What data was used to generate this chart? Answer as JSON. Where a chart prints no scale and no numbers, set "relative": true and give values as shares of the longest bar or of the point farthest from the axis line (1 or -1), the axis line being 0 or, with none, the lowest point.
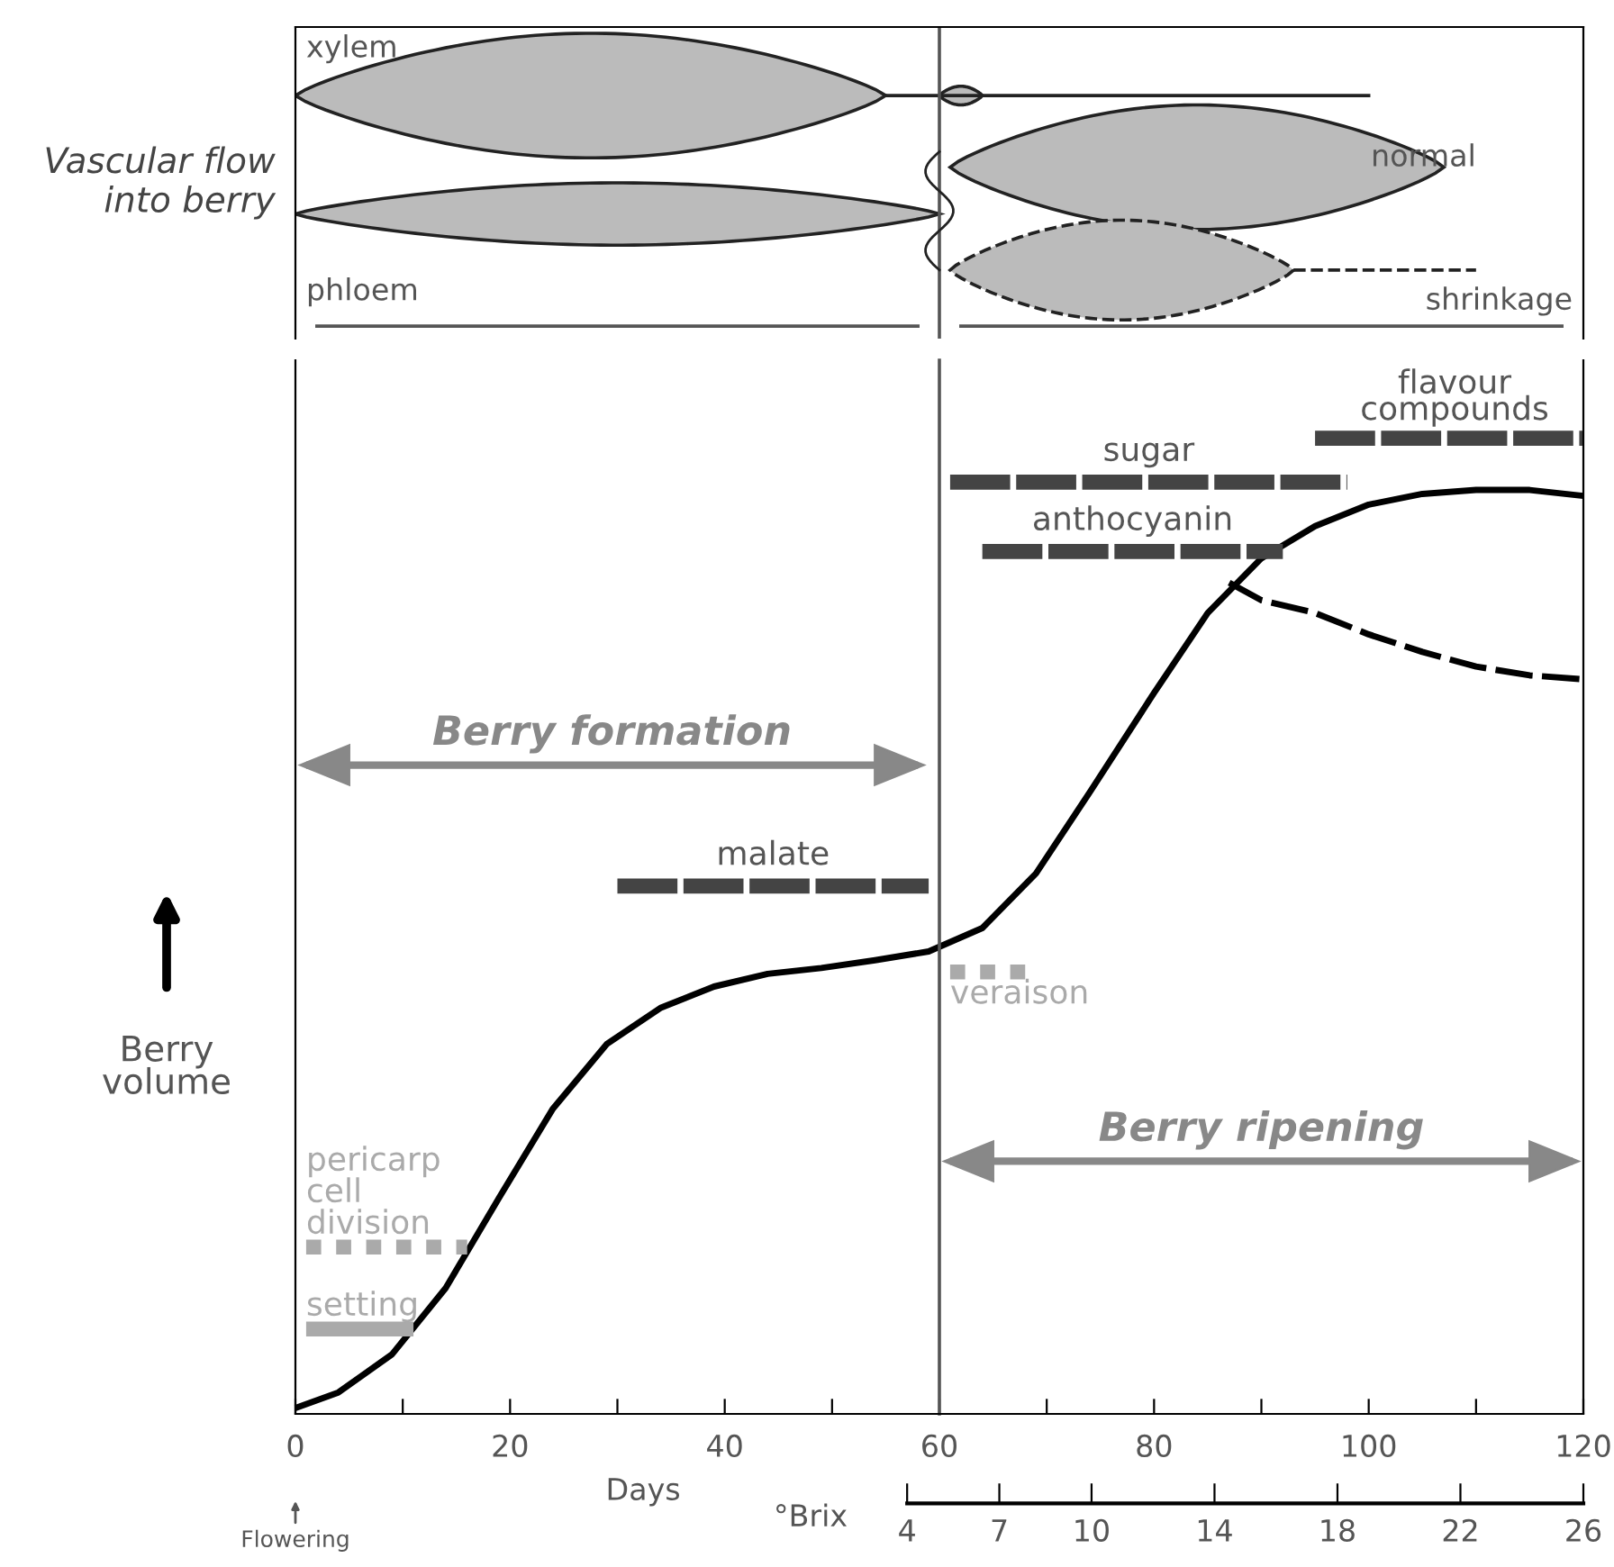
{
  "chart_data": [
    {
      "type": "other",
      "ylabel": "Vascular flow\ninto berry",
      "annotations": [
        "xylem",
        "phloem",
        "normal",
        "shrinkage"
      ]
    },
    {
      "type": "line",
      "relative": true,
      "xlabel": "Days",
      "x2label": "°Brix",
      "ylabel": "Berry\nvolume",
      "xlim": [
        0,
        120
      ],
      "xticks": [
        0,
        {
          "value": 10,
          "label": null
        },
        20,
        {
          "value": 30,
          "label": null
        },
        40,
        {
          "value": 50,
          "label": null
        },
        60,
        {
          "value": 70,
          "label": null
        },
        80,
        {
          "value": 90,
          "label": null
        },
        100,
        {
          "value": 110,
          "label": null
        },
        120
      ],
      "x2lim": [
        -15.9,
        26
      ],
      "x2ticks": [
        4,
        7,
        10,
        14,
        18,
        22,
        26
      ],
      "grid": false,
      "legend": false,
      "marker": "none",
      "series": [
        {
          "color": "#000000",
          "line_style": "solid",
          "x": [
            0,
            4,
            9,
            14,
            19,
            24,
            29,
            34,
            39,
            44,
            49,
            54,
            59,
            64,
            69,
            74,
            80,
            85,
            90,
            95,
            100,
            105,
            110,
            115,
            120
          ],
          "values": [
            0.006,
            0.022,
            0.061,
            0.129,
            0.222,
            0.313,
            0.379,
            0.416,
            0.438,
            0.451,
            0.457,
            0.465,
            0.474,
            0.498,
            0.554,
            0.637,
            0.739,
            0.821,
            0.877,
            0.91,
            0.932,
            0.943,
            0.947,
            0.947,
            0.941
          ]
        },
        {
          "color": "#000000",
          "line_style": "dashed",
          "x": [
            87,
            90,
            95,
            100,
            105,
            110,
            115,
            120
          ],
          "values": [
            0.852,
            0.834,
            0.821,
            0.799,
            0.781,
            0.766,
            0.757,
            0.753
          ]
        },
        {
          "name": "flavour\ncompounds",
          "color": "#444444",
          "line_style": "dashed",
          "x": [
            95,
            120
          ],
          "values": [
            1,
            1
          ]
        },
        {
          "name": "sugar",
          "color": "#444444",
          "line_style": "dashed",
          "x": [
            61,
            98
          ],
          "values": [
            0.955,
            0.955
          ]
        },
        {
          "name": "anthocyanin",
          "color": "#444444",
          "line_style": "dashed",
          "x": [
            64,
            92
          ],
          "values": [
            0.884,
            0.884
          ]
        },
        {
          "name": "Berry formation",
          "color": "#888888",
          "line_style": "solid",
          "x": [
            1,
            58
          ],
          "values": [
            0.665,
            0.665
          ]
        },
        {
          "name": "malate",
          "color": "#444444",
          "line_style": "dashed",
          "x": [
            30,
            59
          ],
          "values": [
            0.541,
            0.541
          ]
        },
        {
          "name": "veraison",
          "color": "#aaaaaa",
          "line_style": "dotted",
          "x": [
            61,
            68
          ],
          "values": [
            0.453,
            0.453
          ]
        },
        {
          "name": "Berry ripening",
          "color": "#888888",
          "line_style": "solid",
          "x": [
            61,
            119
          ],
          "values": [
            0.259,
            0.259
          ]
        },
        {
          "name": "pericarp\ncell\ndivision",
          "color": "#aaaaaa",
          "line_style": "dotted",
          "x": [
            1,
            16
          ],
          "values": [
            0.171,
            0.171
          ]
        },
        {
          "name": "setting",
          "color": "#aaaaaa",
          "line_style": "solid",
          "x": [
            1,
            11
          ],
          "values": [
            0.087,
            0.087
          ]
        }
      ],
      "ref_lines": [
        {
          "axis": "x",
          "value": 60,
          "color": "#555555"
        }
      ],
      "annotations": [
        "Flowering"
      ]
    }
  ]
}
